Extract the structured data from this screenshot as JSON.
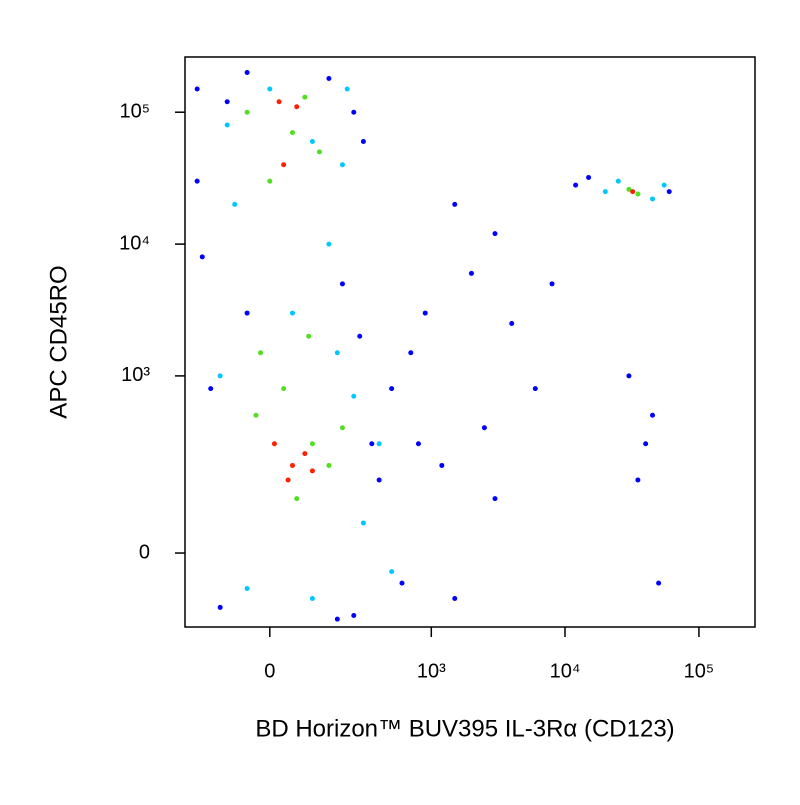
{
  "chart_data": {
    "type": "scatter",
    "xlabel": "BD Horizon™ BUV395 IL-3Rα (CD123)",
    "ylabel": "APC CD45RO",
    "xscale": "biexponential",
    "yscale": "biexponential",
    "xlim": [
      -254,
      262144
    ],
    "ylim": [
      -153,
      262144
    ],
    "xticks": [
      0,
      {
        "value": 1000,
        "label": "10³"
      },
      {
        "value": 10000,
        "label": "10⁴"
      },
      {
        "value": 100000,
        "label": "10⁵"
      }
    ],
    "yticks": [
      0,
      {
        "value": 1000,
        "label": "10³"
      },
      {
        "value": 10000,
        "label": "10⁴"
      },
      {
        "value": 100000,
        "label": "10⁵"
      }
    ],
    "series": [
      {
        "color": "#0000ff",
        "x": [
          -200,
          -100,
          -50,
          150,
          250,
          300,
          -180,
          200,
          280,
          400,
          600,
          800,
          1200,
          1500,
          2500,
          3000,
          500,
          700,
          900,
          2000,
          4000,
          6000,
          1500,
          3000,
          8000,
          12000,
          15000,
          60000,
          40000,
          35000,
          45000,
          30000,
          50000,
          -150,
          -120,
          250,
          350,
          180,
          -200,
          -50
        ],
        "y": [
          150000,
          120000,
          200000,
          180000,
          100000,
          60000,
          8000,
          5000,
          2000,
          150,
          -50,
          300,
          200,
          -80,
          400,
          100,
          800,
          1500,
          3000,
          6000,
          2500,
          800,
          20000,
          12000,
          5000,
          28000,
          32000,
          25000,
          300,
          150,
          500,
          1000,
          -50,
          800,
          -100,
          -120,
          300,
          -130,
          30000,
          3000
        ]
      },
      {
        "color": "#00c8ff",
        "x": [
          -100,
          0,
          100,
          200,
          -80,
          150,
          220,
          -120,
          50,
          180,
          400,
          300,
          500,
          20000,
          25000,
          45000,
          55000,
          -50,
          100,
          250
        ],
        "y": [
          80000,
          150000,
          60000,
          40000,
          20000,
          10000,
          150000,
          1000,
          3000,
          1500,
          300,
          50,
          -30,
          25000,
          30000,
          22000,
          28000,
          -60,
          -80,
          700
        ]
      },
      {
        "color": "#50e020",
        "x": [
          -50,
          50,
          120,
          0,
          80,
          -30,
          100,
          30,
          150,
          60,
          200,
          30000,
          35000,
          -20,
          90
        ],
        "y": [
          100000,
          70000,
          50000,
          30000,
          130000,
          500,
          300,
          800,
          200,
          100,
          400,
          26000,
          24000,
          1500,
          2000
        ]
      },
      {
        "color": "#ff2000",
        "x": [
          20,
          60,
          30,
          80,
          50,
          40,
          10,
          100,
          32000
        ],
        "y": [
          120000,
          110000,
          40000,
          250,
          200,
          150,
          300,
          180,
          25000
        ]
      }
    ]
  }
}
